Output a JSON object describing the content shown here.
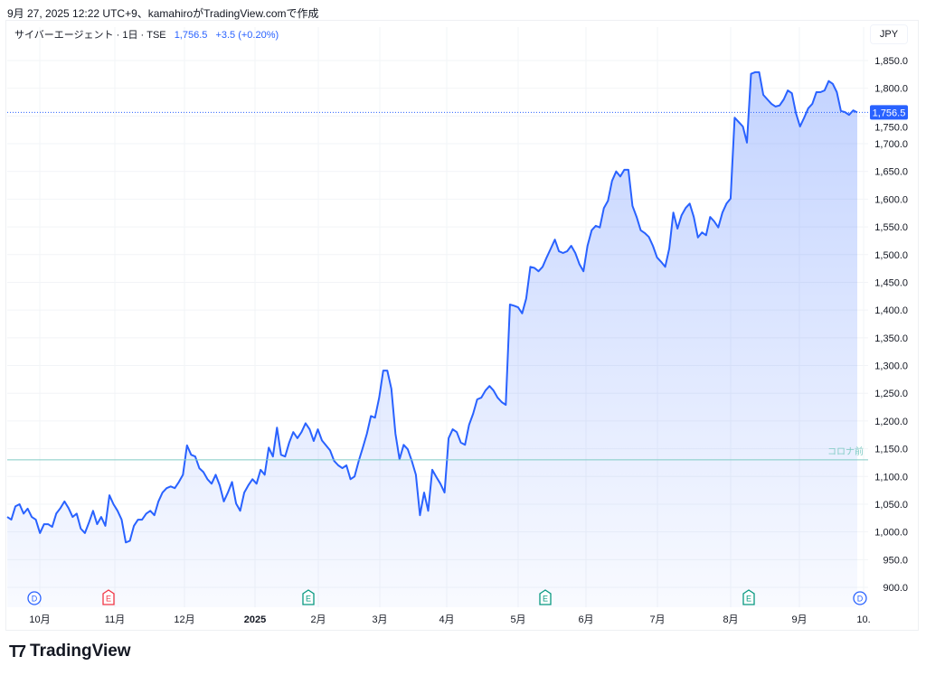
{
  "caption": "9月 27, 2025 12:22 UTC+9、kamahiroがTradingView.comで作成",
  "legend": {
    "symbol": "サイバーエージェント · 1日 · TSE",
    "price": "1,756.5",
    "change": "+3.5 (+0.20%)"
  },
  "currency": "JPY",
  "brand": "TradingView",
  "colors": {
    "line": "#2962ff",
    "hline": "#80cbc4",
    "last": "#2962ff"
  },
  "chart_data": {
    "type": "area",
    "title": "サイバーエージェント · 1日 · TSE",
    "ylim": [
      900,
      1850
    ],
    "y_ticks": [
      "1,850.0",
      "1,800.0",
      "1,750.0",
      "1,700.0",
      "1,650.0",
      "1,600.0",
      "1,550.0",
      "1,500.0",
      "1,450.0",
      "1,400.0",
      "1,350.0",
      "1,300.0",
      "1,250.0",
      "1,200.0",
      "1,150.0",
      "1,100.0",
      "1,050.0",
      "1,000.0",
      "950.0",
      "900.0"
    ],
    "x_ticks": [
      "10月",
      "11月",
      "12月",
      "2025",
      "2月",
      "3月",
      "4月",
      "5月",
      "6月",
      "7月",
      "8月",
      "9月",
      "10."
    ],
    "last_price": 1756.5,
    "last_label": "1,756.5",
    "horizontal_line": {
      "value": 1130,
      "label": "コロナ前"
    },
    "events": [
      {
        "type": "D",
        "month": "10月",
        "color": "#2962ff"
      },
      {
        "type": "E",
        "month": "11月",
        "color": "#f23645"
      },
      {
        "type": "E",
        "month": "2月",
        "color": "#089981"
      },
      {
        "type": "E",
        "month": "5月",
        "color": "#089981"
      },
      {
        "type": "E",
        "month": "8月",
        "color": "#089981"
      },
      {
        "type": "D",
        "month": "10.",
        "color": "#2962ff"
      }
    ],
    "values": [
      1027,
      1022,
      1046,
      1050,
      1033,
      1042,
      1027,
      1022,
      998,
      1014,
      1014,
      1009,
      1033,
      1043,
      1055,
      1043,
      1027,
      1033,
      1006,
      998,
      1017,
      1038,
      1014,
      1027,
      1011,
      1066,
      1050,
      1038,
      1022,
      981,
      984,
      1011,
      1022,
      1022,
      1033,
      1038,
      1030,
      1055,
      1071,
      1079,
      1082,
      1079,
      1090,
      1103,
      1156,
      1139,
      1136,
      1115,
      1108,
      1095,
      1087,
      1103,
      1084,
      1055,
      1071,
      1090,
      1051,
      1038,
      1071,
      1084,
      1095,
      1087,
      1112,
      1103,
      1152,
      1136,
      1188,
      1139,
      1136,
      1161,
      1180,
      1169,
      1180,
      1196,
      1185,
      1164,
      1185,
      1165,
      1156,
      1147,
      1128,
      1120,
      1115,
      1120,
      1095,
      1100,
      1128,
      1152,
      1177,
      1209,
      1206,
      1242,
      1291,
      1291,
      1258,
      1177,
      1131,
      1157,
      1149,
      1128,
      1103,
      1030,
      1071,
      1038,
      1112,
      1099,
      1087,
      1071,
      1169,
      1185,
      1180,
      1161,
      1157,
      1193,
      1213,
      1239,
      1242,
      1255,
      1263,
      1255,
      1242,
      1234,
      1229,
      1410,
      1408,
      1405,
      1394,
      1421,
      1478,
      1476,
      1470,
      1478,
      1495,
      1511,
      1527,
      1506,
      1503,
      1506,
      1516,
      1503,
      1483,
      1470,
      1516,
      1544,
      1552,
      1549,
      1584,
      1597,
      1633,
      1650,
      1641,
      1653,
      1653,
      1588,
      1568,
      1544,
      1539,
      1532,
      1516,
      1495,
      1487,
      1478,
      1511,
      1576,
      1547,
      1571,
      1584,
      1592,
      1568,
      1531,
      1540,
      1535,
      1568,
      1560,
      1549,
      1576,
      1592,
      1601,
      1747,
      1739,
      1731,
      1702,
      1826,
      1829,
      1829,
      1788,
      1780,
      1772,
      1767,
      1769,
      1780,
      1796,
      1791,
      1755,
      1731,
      1747,
      1764,
      1772,
      1793,
      1793,
      1796,
      1813,
      1808,
      1793,
      1759,
      1757,
      1752,
      1760,
      1756.5
    ]
  }
}
